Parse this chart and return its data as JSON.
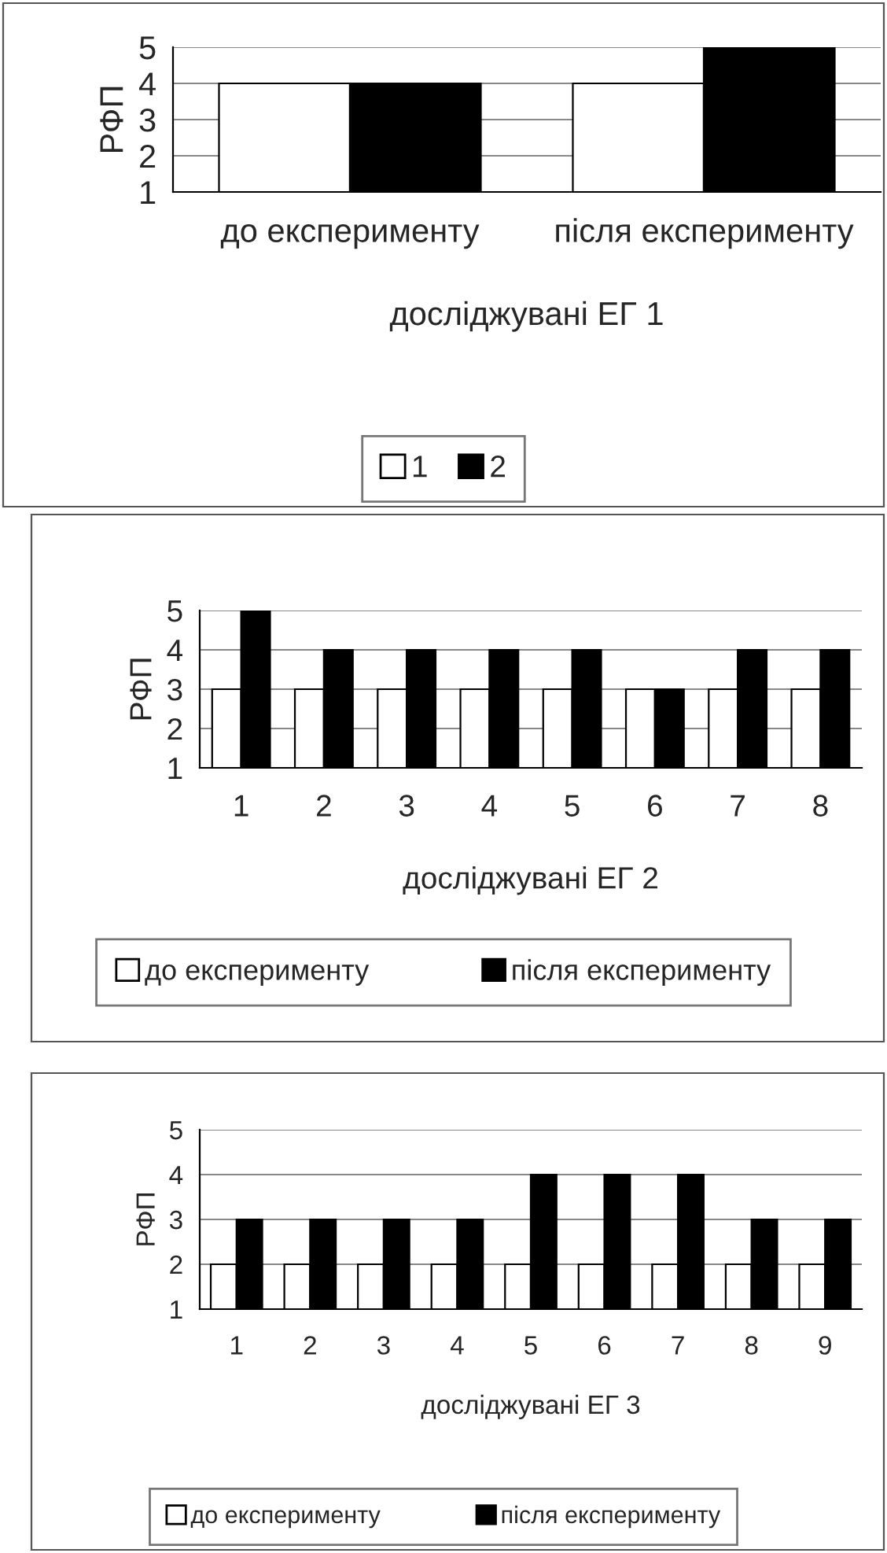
{
  "chart_data": [
    {
      "type": "bar",
      "xlabel": "досліджувані ЕГ 1",
      "ylabel": "РФП",
      "categories": [
        "до експерименту",
        "після експерименту"
      ],
      "series": [
        {
          "name": "1",
          "color": "#ffffff",
          "values": [
            4,
            4
          ]
        },
        {
          "name": "2",
          "color": "#000000",
          "values": [
            4,
            5
          ]
        }
      ],
      "ylim": [
        1,
        5
      ],
      "yticks": [
        1,
        2,
        3,
        4,
        5
      ],
      "grid": "y",
      "legend": "bottom"
    },
    {
      "type": "bar",
      "xlabel": "досліджувані ЕГ 2",
      "ylabel": "РФП",
      "categories": [
        "1",
        "2",
        "3",
        "4",
        "5",
        "6",
        "7",
        "8"
      ],
      "series": [
        {
          "name": "до експерименту",
          "color": "#ffffff",
          "values": [
            3,
            3,
            3,
            3,
            3,
            3,
            3,
            3
          ]
        },
        {
          "name": "після експерименту",
          "color": "#000000",
          "values": [
            5,
            4,
            4,
            4,
            4,
            3,
            4,
            4
          ]
        }
      ],
      "ylim": [
        1,
        5
      ],
      "yticks": [
        1,
        2,
        3,
        4,
        5
      ],
      "grid": "y",
      "legend": "bottom"
    },
    {
      "type": "bar",
      "xlabel": "досліджувані ЕГ 3",
      "ylabel": "РФП",
      "categories": [
        "1",
        "2",
        "3",
        "4",
        "5",
        "6",
        "7",
        "8",
        "9"
      ],
      "series": [
        {
          "name": "до експерименту",
          "color": "#ffffff",
          "values": [
            2,
            2,
            2,
            2,
            2,
            2,
            2,
            2,
            2
          ]
        },
        {
          "name": "після експерименту",
          "color": "#000000",
          "values": [
            3,
            3,
            3,
            3,
            4,
            4,
            4,
            3,
            3
          ]
        }
      ],
      "ylim": [
        1,
        5
      ],
      "yticks": [
        1,
        2,
        3,
        4,
        5
      ],
      "grid": "y",
      "legend": "bottom"
    }
  ]
}
